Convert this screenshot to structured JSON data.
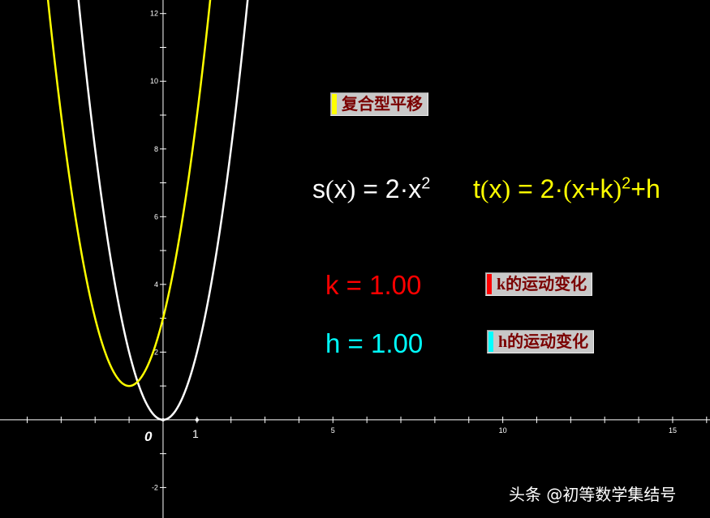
{
  "plot": {
    "origin_label": "0",
    "unit_label": "1",
    "x_ticks": [
      5,
      10,
      15
    ],
    "y_ticks": [
      -2,
      2,
      4,
      6,
      8,
      10,
      12
    ],
    "x_range": [
      -4.8,
      16.1
    ],
    "y_range": [
      -2.9,
      12.4
    ],
    "functions": [
      {
        "name": "s",
        "a": 2,
        "k": 0,
        "h": 0,
        "color": "#ffffff"
      },
      {
        "name": "t",
        "a": 2,
        "k": 1,
        "h": 1,
        "color": "#ffff00"
      }
    ]
  },
  "buttons": {
    "composite": {
      "label": "复合型平移",
      "marker_color": "#ffff00"
    },
    "k_anim": {
      "label": "k的运动变化",
      "marker_color": "#ff0000"
    },
    "h_anim": {
      "label": "h的运动变化",
      "marker_color": "#00ffff"
    }
  },
  "formulas": {
    "s": {
      "lhs": "s",
      "arg": "x",
      "body": " = 2·x",
      "exp": "2",
      "color": "#ffffff"
    },
    "t": {
      "lhs": "t",
      "arg": "x",
      "body1": " = 2·",
      "inner": "x+k",
      "exp": "2",
      "tail": "+h",
      "color": "#ffff00"
    }
  },
  "params": {
    "k": {
      "text": "k = 1.00",
      "color": "#ff0000"
    },
    "h": {
      "text": "h = 1.00",
      "color": "#00ffff"
    }
  },
  "watermark": "头条 @初等数学集结号"
}
